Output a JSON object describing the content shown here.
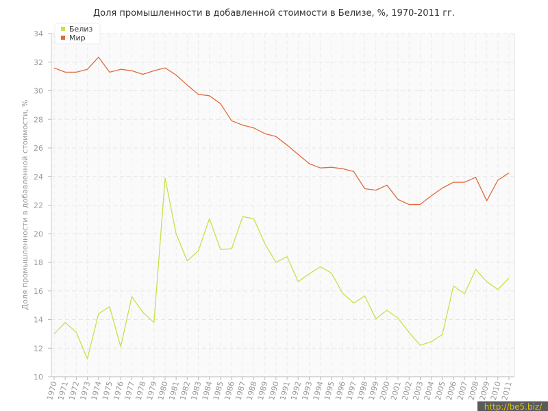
{
  "chart_data": {
    "type": "line",
    "title": "Доля промышленности в добавленной стоимости в Белизе, %, 1970-2011 гг.",
    "xlabel": "",
    "ylabel": "Доля промышленности в добавленной стоимости, %",
    "x": [
      1970,
      1971,
      1972,
      1973,
      1974,
      1975,
      1976,
      1977,
      1978,
      1979,
      1980,
      1981,
      1982,
      1983,
      1984,
      1985,
      1986,
      1987,
      1988,
      1989,
      1990,
      1991,
      1992,
      1993,
      1994,
      1995,
      1996,
      1997,
      1998,
      1999,
      2000,
      2001,
      2002,
      2003,
      2004,
      2005,
      2006,
      2007,
      2008,
      2009,
      2010,
      2011
    ],
    "ylim": [
      10,
      34
    ],
    "yticks": [
      10,
      12,
      14,
      16,
      18,
      20,
      22,
      24,
      26,
      28,
      30,
      32,
      34
    ],
    "grid": true,
    "legend_position": "top-left",
    "series": [
      {
        "name": "Белиз",
        "color": "#c8e04a",
        "values": [
          13.0,
          13.8,
          13.1,
          11.25,
          14.4,
          14.9,
          12.1,
          15.6,
          14.5,
          13.8,
          23.9,
          20.0,
          18.1,
          18.8,
          21.05,
          18.9,
          18.95,
          21.2,
          21.05,
          19.3,
          18.0,
          18.4,
          16.65,
          17.2,
          17.7,
          17.25,
          15.85,
          15.15,
          15.65,
          14.05,
          14.65,
          14.1,
          13.1,
          12.2,
          12.45,
          12.95,
          16.35,
          15.8,
          17.5,
          16.65,
          16.1,
          16.9
        ]
      },
      {
        "name": "Мир",
        "color": "#e06a3c",
        "values": [
          31.6,
          31.3,
          31.3,
          31.5,
          32.35,
          31.3,
          31.5,
          31.4,
          31.15,
          31.4,
          31.6,
          31.1,
          30.4,
          29.75,
          29.65,
          29.1,
          27.9,
          27.6,
          27.4,
          27.0,
          26.8,
          26.2,
          25.55,
          24.9,
          24.6,
          24.65,
          24.55,
          24.35,
          23.15,
          23.05,
          23.4,
          22.4,
          22.05,
          22.05,
          22.65,
          23.2,
          23.6,
          23.6,
          23.95,
          22.3,
          23.75,
          24.25
        ]
      }
    ]
  },
  "watermark": "http://be5.biz/"
}
